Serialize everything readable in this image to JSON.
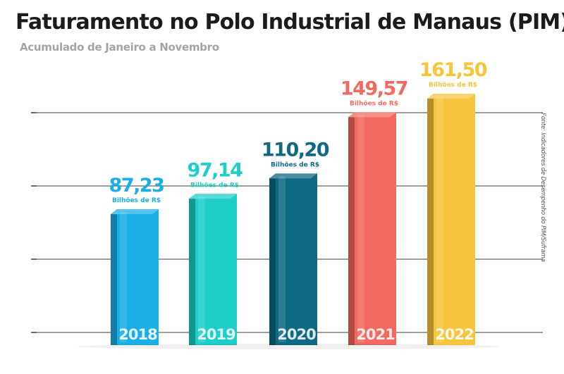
{
  "chart_data": {
    "type": "bar",
    "title": "Faturamento no Polo Industrial de Manaus (PIM)",
    "subtitle": "Acumulado de Janeiro a Novembro",
    "source": "Fonte: Indicadores de Desempenho do PIM/Suframa",
    "categories": [
      "2018",
      "2019",
      "2020",
      "2021",
      "2022"
    ],
    "values": [
      87.23,
      97.14,
      110.2,
      149.57,
      161.5
    ],
    "value_labels": [
      "87,23",
      "97,14",
      "110,20",
      "149,57",
      "161,50"
    ],
    "unit_label": "Bilhões de R$",
    "colors": [
      "#1aaee6",
      "#1dcfc8",
      "#0e6a82",
      "#f26a5f",
      "#f7c53d"
    ],
    "xlabel": "",
    "ylabel": "",
    "grid": true,
    "legend": "none"
  }
}
